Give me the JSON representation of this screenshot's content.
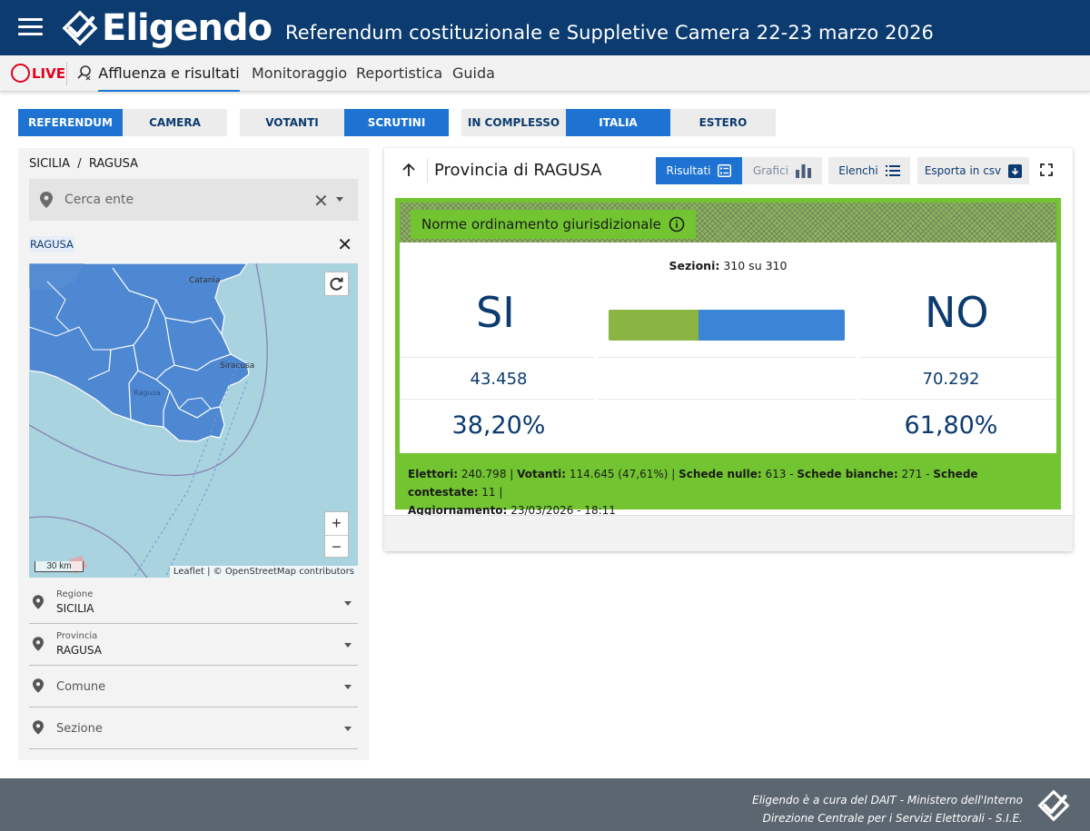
{
  "header": {
    "logo_text": "Eligendo",
    "title": "Referendum costituzionale e Suppletive Camera 22-23 marzo 2026"
  },
  "nav": {
    "live_label": "LIVE",
    "tabs": [
      {
        "label": "Affluenza e risultati",
        "active": true
      },
      {
        "label": "Monitoraggio",
        "active": false
      },
      {
        "label": "Reportistica",
        "active": false
      },
      {
        "label": "Guida",
        "active": false
      }
    ]
  },
  "filters": {
    "group1": [
      {
        "label": "REFERENDUM",
        "active": true
      },
      {
        "label": "CAMERA",
        "active": false
      }
    ],
    "group2": [
      {
        "label": "VOTANTI",
        "active": false
      },
      {
        "label": "SCRUTINI",
        "active": true
      }
    ],
    "group3": [
      {
        "label": "IN COMPLESSO",
        "active": false
      },
      {
        "label": "ITALIA",
        "active": true
      },
      {
        "label": "ESTERO",
        "active": false
      }
    ]
  },
  "left": {
    "breadcrumb": "SICILIA  /  RAGUSA",
    "search_placeholder": "Cerca ente",
    "selected_chip": "RAGUSA",
    "map": {
      "labels": [
        "Catania",
        "Siracusa",
        "Ragusa"
      ],
      "scale": "30 km",
      "attribution": "Leaflet | © OpenStreetMap contributors",
      "zoom_in": "+",
      "zoom_out": "−"
    },
    "fields": [
      {
        "label": "Regione",
        "value": "SICILIA"
      },
      {
        "label": "Provincia",
        "value": "RAGUSA"
      },
      {
        "label": "",
        "value": "",
        "placeholder": "Comune"
      },
      {
        "label": "",
        "value": "",
        "placeholder": "Sezione"
      }
    ]
  },
  "card": {
    "title": "Provincia di RAGUSA",
    "buttons": {
      "risultati": "Risultati",
      "grafici": "Grafici",
      "elenchi": "Elenchi",
      "esporta": "Esporta in csv"
    },
    "question": "Norme ordinamento giurisdizionale",
    "sezioni_label": "Sezioni:",
    "sezioni_value": "310 su 310",
    "si_label": "SI",
    "no_label": "NO",
    "si_votes": "43.458",
    "no_votes": "70.292",
    "si_pct": "38,20%",
    "no_pct": "61,80%",
    "si_share": 0.382,
    "colors": {
      "si": "#8bb543",
      "no": "#3a86d4",
      "accent": "#1e73d2",
      "green": "#72c530"
    },
    "stats": {
      "elettori_label": "Elettori:",
      "elettori": "240.798",
      "votanti_label": "Votanti:",
      "votanti": "114.645 (47,61%)",
      "nulle_label": "Schede nulle:",
      "nulle": "613",
      "bianche_label": "Schede bianche:",
      "bianche": "271",
      "contestate_label": "Schede contestate:",
      "contestate": "11",
      "aggiornamento_label": "Aggiornamento:",
      "aggiornamento": "23/03/2026 - 18:11"
    }
  },
  "footer": {
    "line1": "Eligendo è a cura del DAIT - Ministero dell'Interno",
    "line2": "Direzione Centrale per i Servizi Elettorali - S.I.E."
  }
}
